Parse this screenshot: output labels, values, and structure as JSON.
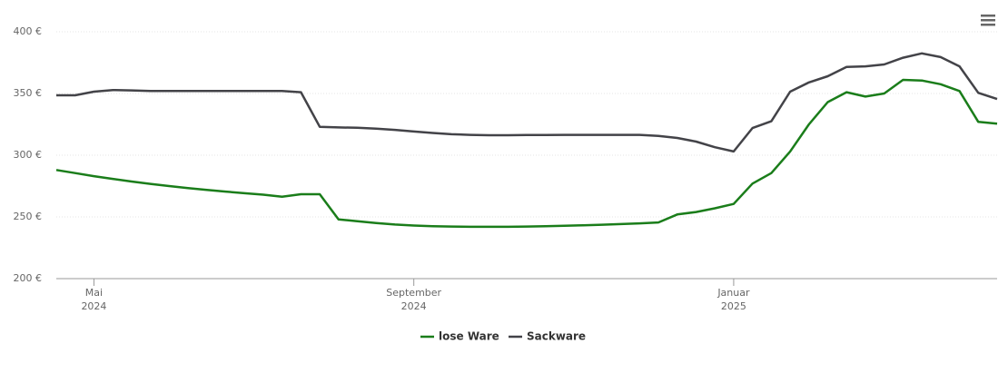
{
  "chart_data": {
    "type": "line",
    "categories": [
      null,
      null,
      "Mai 2024",
      null,
      null,
      null,
      null,
      null,
      null,
      null,
      null,
      null,
      null,
      null,
      null,
      null,
      null,
      null,
      null,
      "September 2024",
      null,
      null,
      null,
      null,
      null,
      null,
      null,
      null,
      null,
      null,
      null,
      null,
      null,
      null,
      null,
      null,
      "Januar 2025",
      null,
      null,
      null,
      null,
      null,
      null,
      null,
      null,
      null,
      null,
      null,
      null,
      null,
      null
    ],
    "series": [
      {
        "name": "lose Ware",
        "color": "#1a7d1a",
        "values": [
          288,
          285.5,
          283,
          280.8,
          278.7,
          276.8,
          275,
          273.4,
          271.9,
          270.5,
          269.2,
          268,
          266.3,
          268.4,
          268.4,
          248,
          246.5,
          245,
          243.8,
          243,
          242.5,
          242.2,
          242,
          242,
          242,
          242.2,
          242.5,
          242.8,
          243.2,
          243.7,
          244.2,
          244.8,
          245.5,
          252,
          254,
          257,
          260.5,
          277,
          285.5,
          303,
          325,
          343,
          351,
          347.5,
          350,
          361,
          360.5,
          357.5,
          352,
          327,
          325.5
        ]
      },
      {
        "name": "Sackware",
        "color": "#434348",
        "values": [
          348.5,
          348.5,
          351.5,
          352.8,
          352.5,
          352,
          352,
          352,
          352,
          352,
          352,
          352,
          352,
          351,
          323,
          322.5,
          322.2,
          321.5,
          320.5,
          319.2,
          318,
          317,
          316.5,
          316.2,
          316.2,
          316.3,
          316.4,
          316.5,
          316.5,
          316.5,
          316.5,
          316.5,
          315.6,
          314,
          311,
          306.5,
          303,
          322,
          327.5,
          351.5,
          359,
          364,
          371.5,
          372,
          373.5,
          379,
          382.5,
          379.5,
          372,
          350.5,
          345.5
        ]
      }
    ],
    "ylim": [
      200,
      400
    ],
    "yticks": [
      {
        "value": 200,
        "label": "200 €"
      },
      {
        "value": 250,
        "label": "250 €"
      },
      {
        "value": 300,
        "label": "300 €"
      },
      {
        "value": 350,
        "label": "350 €"
      },
      {
        "value": 400,
        "label": "400 €"
      }
    ],
    "grid": true
  }
}
